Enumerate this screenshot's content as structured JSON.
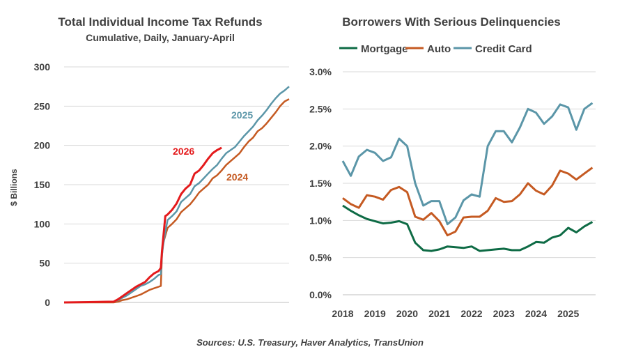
{
  "source": "Sources: U.S. Treasury, Haver Analytics, TransUnion",
  "chart_data": [
    {
      "type": "line",
      "title": "Total Individual Income Tax Refunds",
      "subtitle": "Cumulative, Daily, January-April",
      "xlabel": "",
      "ylabel": "$ Billions",
      "ylim": [
        0,
        300
      ],
      "yticks": [
        "0",
        "50",
        "100",
        "150",
        "200",
        "250",
        "300"
      ],
      "ytick_values": [
        0,
        50,
        100,
        150,
        200,
        250,
        300
      ],
      "xlim": [
        0,
        100
      ],
      "grid": true,
      "series": [
        {
          "name": "2024",
          "label": "2024",
          "color": "#C55A22",
          "x": [
            0,
            22,
            24,
            26,
            28,
            30,
            32,
            34,
            36,
            38,
            40,
            42,
            43,
            43.5,
            44,
            45,
            46,
            48,
            50,
            52,
            54,
            56,
            58,
            60,
            62,
            64,
            66,
            68,
            70,
            72,
            74,
            76,
            78,
            80,
            82,
            84,
            86,
            88,
            90,
            92,
            94,
            96,
            98,
            100
          ],
          "y": [
            0,
            0,
            1,
            3,
            4,
            6,
            8,
            10,
            13,
            16,
            18,
            20,
            21,
            60,
            75,
            85,
            95,
            100,
            106,
            115,
            120,
            125,
            132,
            140,
            145,
            150,
            158,
            162,
            168,
            175,
            180,
            185,
            190,
            198,
            205,
            210,
            218,
            222,
            228,
            235,
            242,
            250,
            256,
            259
          ]
        },
        {
          "name": "2025",
          "label": "2025",
          "color": "#5B96A8",
          "x": [
            0,
            22,
            24,
            26,
            28,
            30,
            32,
            34,
            36,
            38,
            40,
            42,
            43,
            43.5,
            44,
            45,
            46,
            48,
            50,
            52,
            54,
            56,
            58,
            60,
            62,
            64,
            66,
            68,
            70,
            72,
            74,
            76,
            78,
            80,
            82,
            84,
            86,
            88,
            90,
            92,
            94,
            96,
            98,
            100
          ],
          "y": [
            0,
            1,
            3,
            6,
            9,
            13,
            17,
            21,
            23,
            26,
            30,
            35,
            36,
            60,
            72,
            90,
            105,
            110,
            116,
            128,
            133,
            138,
            148,
            152,
            158,
            164,
            170,
            175,
            183,
            190,
            194,
            198,
            205,
            212,
            218,
            224,
            232,
            238,
            245,
            253,
            260,
            266,
            270,
            275
          ]
        },
        {
          "name": "2026",
          "label": "2026",
          "color": "#E41A1C",
          "x": [
            0,
            22,
            24,
            26,
            28,
            30,
            32,
            34,
            36,
            38,
            40,
            42,
            43,
            43.5,
            44,
            45,
            46,
            48,
            50,
            52,
            54,
            56,
            58,
            60,
            62,
            64,
            66,
            68,
            70
          ],
          "y": [
            0,
            1,
            4,
            8,
            12,
            16,
            20,
            23,
            26,
            32,
            37,
            40,
            44,
            65,
            80,
            110,
            112,
            118,
            126,
            138,
            145,
            150,
            164,
            168,
            175,
            183,
            190,
            194,
            197
          ]
        }
      ]
    },
    {
      "type": "line",
      "title": "Borrowers With Serious Delinquencies",
      "xlabel": "",
      "ylabel": "",
      "ylim": [
        0.0,
        3.0
      ],
      "yticks": [
        "0.0%",
        "0.5%",
        "1.0%",
        "1.5%",
        "2.0%",
        "2.5%",
        "3.0%"
      ],
      "ytick_values": [
        0.0,
        0.5,
        1.0,
        1.5,
        2.0,
        2.5,
        3.0
      ],
      "xlim": [
        2018,
        2025.85
      ],
      "xticks": [
        "2018",
        "2019",
        "2020",
        "2021",
        "2022",
        "2023",
        "2024",
        "2025"
      ],
      "xtick_values": [
        2018,
        2019,
        2020,
        2021,
        2022,
        2023,
        2024,
        2025
      ],
      "grid": true,
      "legend": "top",
      "series": [
        {
          "name": "Mortgage",
          "color": "#0E6B45",
          "x": [
            2018,
            2018.25,
            2018.5,
            2018.75,
            2019,
            2019.25,
            2019.5,
            2019.75,
            2020,
            2020.25,
            2020.5,
            2020.75,
            2021,
            2021.25,
            2021.5,
            2021.75,
            2022,
            2022.25,
            2022.5,
            2022.75,
            2023,
            2023.25,
            2023.5,
            2023.75,
            2024,
            2024.25,
            2024.5,
            2024.75,
            2025,
            2025.25,
            2025.5,
            2025.75
          ],
          "y": [
            1.2,
            1.13,
            1.07,
            1.02,
            0.99,
            0.96,
            0.97,
            0.99,
            0.95,
            0.7,
            0.6,
            0.59,
            0.61,
            0.65,
            0.64,
            0.63,
            0.65,
            0.59,
            0.6,
            0.61,
            0.62,
            0.6,
            0.6,
            0.65,
            0.71,
            0.7,
            0.77,
            0.8,
            0.9,
            0.84,
            0.92,
            0.98
          ]
        },
        {
          "name": "Auto",
          "color": "#C55A22",
          "x": [
            2018,
            2018.25,
            2018.5,
            2018.75,
            2019,
            2019.25,
            2019.5,
            2019.75,
            2020,
            2020.25,
            2020.5,
            2020.75,
            2021,
            2021.25,
            2021.5,
            2021.75,
            2022,
            2022.25,
            2022.5,
            2022.75,
            2023,
            2023.25,
            2023.5,
            2023.75,
            2024,
            2024.25,
            2024.5,
            2024.75,
            2025,
            2025.25,
            2025.5,
            2025.75
          ],
          "y": [
            1.3,
            1.22,
            1.17,
            1.34,
            1.32,
            1.28,
            1.41,
            1.45,
            1.38,
            1.05,
            1.01,
            1.1,
            0.99,
            0.8,
            0.85,
            1.04,
            1.05,
            1.05,
            1.13,
            1.3,
            1.25,
            1.26,
            1.35,
            1.5,
            1.4,
            1.35,
            1.47,
            1.67,
            1.63,
            1.55,
            1.63,
            1.71
          ]
        },
        {
          "name": "Credit Card",
          "color": "#5B96A8",
          "x": [
            2018,
            2018.25,
            2018.5,
            2018.75,
            2019,
            2019.25,
            2019.5,
            2019.75,
            2020,
            2020.25,
            2020.5,
            2020.75,
            2021,
            2021.25,
            2021.5,
            2021.75,
            2022,
            2022.25,
            2022.5,
            2022.75,
            2023,
            2023.25,
            2023.5,
            2023.75,
            2024,
            2024.25,
            2024.5,
            2024.75,
            2025,
            2025.25,
            2025.5,
            2025.75
          ],
          "y": [
            1.8,
            1.6,
            1.86,
            1.95,
            1.91,
            1.8,
            1.85,
            2.1,
            2.0,
            1.5,
            1.2,
            1.26,
            1.26,
            0.95,
            1.04,
            1.27,
            1.35,
            1.32,
            2.0,
            2.2,
            2.2,
            2.05,
            2.25,
            2.5,
            2.45,
            2.3,
            2.4,
            2.56,
            2.52,
            2.22,
            2.5,
            2.58
          ]
        }
      ]
    }
  ]
}
